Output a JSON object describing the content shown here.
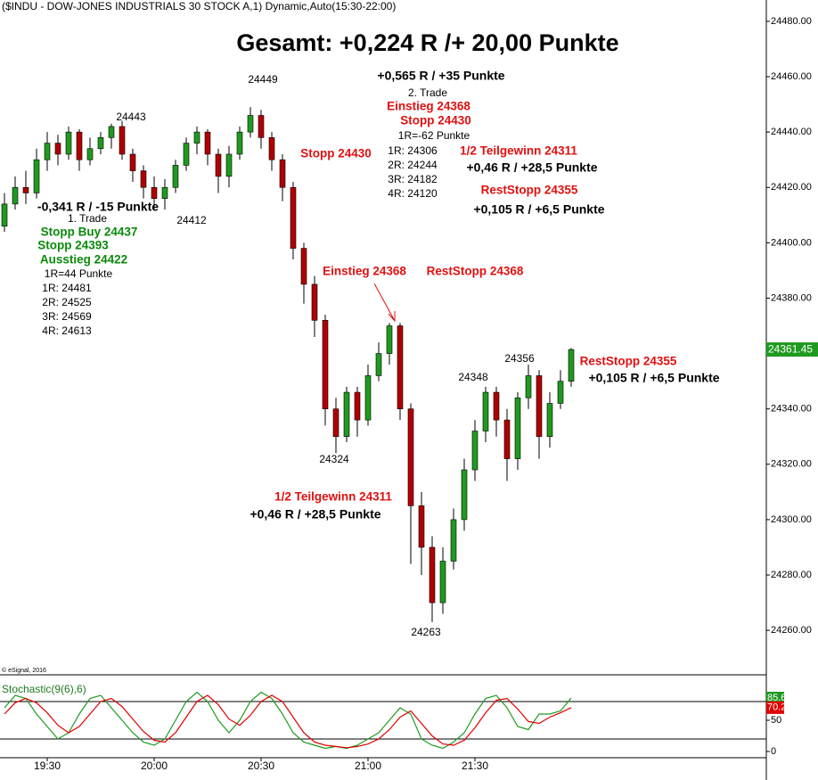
{
  "chart_data": [
    {
      "type": "candlestick",
      "title": "($INDU - DOW-JONES INDUSTRIALS 30 STOCK A,1) Dynamic,Auto(15:30-22:00)",
      "credit": "© eSignal, 2016",
      "up_color": "#1f9a1f",
      "down_color": "#b00000",
      "x": [
        1158,
        1161,
        1164,
        1167,
        1170,
        1173,
        1176,
        1179,
        1182,
        1185,
        1188,
        1191,
        1194,
        1197,
        1200,
        1203,
        1206,
        1209,
        1212,
        1215,
        1218,
        1221,
        1224,
        1227,
        1230,
        1233,
        1236,
        1239,
        1242,
        1245,
        1248,
        1251,
        1254,
        1257,
        1260,
        1263,
        1266,
        1269,
        1272,
        1275,
        1278,
        1281,
        1284,
        1287,
        1290,
        1293,
        1296,
        1299,
        1302,
        1305,
        1308,
        1311,
        1314,
        1317
      ],
      "open": [
        24406,
        24414,
        24420,
        24418,
        24430,
        24436,
        24432,
        24440,
        24430,
        24434,
        24438,
        24442,
        24432,
        24426,
        24420,
        24416,
        24420,
        24428,
        24436,
        24440,
        24432,
        24424,
        24432,
        24440,
        24446,
        24438,
        24430,
        24420,
        24398,
        24385,
        24372,
        24340,
        24330,
        24346,
        24336,
        24352,
        24360,
        24370,
        24340,
        24305,
        24290,
        24270,
        24285,
        24300,
        24318,
        24332,
        24346,
        24336,
        24322,
        24344,
        24352,
        24330,
        24342,
        24350
      ],
      "high": [
        24418,
        24424,
        24426,
        24434,
        24440,
        24439,
        24442,
        24441,
        24438,
        24440,
        24443,
        24444,
        24434,
        24428,
        24424,
        24423,
        24430,
        24438,
        24442,
        24441,
        24434,
        24435,
        24442,
        24449,
        24448,
        24440,
        24432,
        24422,
        24400,
        24388,
        24374,
        24344,
        24348,
        24348,
        24356,
        24364,
        24371,
        24371,
        24342,
        24310,
        24294,
        24290,
        24304,
        24322,
        24336,
        24348,
        24348,
        24340,
        24346,
        24356,
        24354,
        24346,
        24354,
        24362
      ],
      "low": [
        24404,
        24412,
        24414,
        24416,
        24426,
        24428,
        24430,
        24426,
        24428,
        24432,
        24434,
        24430,
        24422,
        24416,
        24412,
        24412,
        24418,
        24426,
        24432,
        24428,
        24418,
        24420,
        24430,
        24438,
        24434,
        24426,
        24415,
        24394,
        24378,
        24366,
        24334,
        24324,
        24328,
        24330,
        24334,
        24350,
        24356,
        24336,
        24284,
        24280,
        24263,
        24266,
        24282,
        24296,
        24314,
        24328,
        24330,
        24314,
        24318,
        24340,
        24322,
        24326,
        24340,
        24348
      ],
      "close": [
        24414,
        24420,
        24418,
        24430,
        24436,
        24432,
        24440,
        24430,
        24434,
        24438,
        24442,
        24432,
        24426,
        24420,
        24416,
        24420,
        24428,
        24436,
        24440,
        24432,
        24424,
        24432,
        24440,
        24446,
        24438,
        24430,
        24420,
        24398,
        24385,
        24372,
        24340,
        24330,
        24346,
        24336,
        24352,
        24360,
        24370,
        24340,
        24305,
        24290,
        24270,
        24285,
        24300,
        24318,
        24332,
        24346,
        24336,
        24322,
        24344,
        24352,
        24330,
        24342,
        24350,
        24361.45
      ],
      "xlim": [
        1156.75,
        1371.75
      ],
      "ylim": [
        24246.2,
        24487.7
      ],
      "yticks": [
        {
          "value": 24260,
          "label": "24260.00"
        },
        {
          "value": 24280,
          "label": "24280.00"
        },
        {
          "value": 24300,
          "label": "24300.00"
        },
        {
          "value": 24320,
          "label": "24320.00"
        },
        {
          "value": 24340,
          "label": "24340.00"
        },
        {
          "value": 24360,
          "label": "24360.00"
        },
        {
          "value": 24380,
          "label": "24380.00"
        },
        {
          "value": 24400,
          "label": "24400.00"
        },
        {
          "value": 24420,
          "label": "24420.00"
        },
        {
          "value": 24440,
          "label": "24440.00"
        },
        {
          "value": 24460,
          "label": "24460.00"
        },
        {
          "value": 24480,
          "label": "24480.00"
        }
      ],
      "annotations": [
        "Gesamt: +0,224 R /+ 20,00 Punkte",
        "24449",
        "+0,565 R / +35 Punkte",
        "2. Trade",
        "Einstieg 24368",
        "Stopp 24430",
        "1R=-62 Punkte",
        "1R: 24306",
        "2R: 24244",
        "3R: 24182",
        "4R: 24120",
        "1/2 Teilgewinn 24311",
        "+0,46 R / +28,5 Punkte",
        "RestStopp 24355",
        "+0,105 R / +6,5 Punkte",
        "24443",
        "Stopp 24430",
        "-0,341 R / -15 Punkte",
        "24412",
        "1. Trade",
        "Stopp Buy 24437",
        "Stopp 24393",
        "Ausstieg 24422",
        "1R=44 Punkte",
        "1R: 24481",
        "2R: 24525",
        "3R: 24569",
        "4R: 24613",
        "Einstieg 24368",
        "RestStopp 24368",
        "24356",
        "RestStopp 24355",
        "+0,105 R / +6,5 Punkte",
        "24348",
        "24324",
        "1/2 Teilgewinn 24311",
        "+0,46 R / +28,5 Punkte",
        "24263"
      ]
    },
    {
      "type": "line",
      "title": "Stochastic(9(6),6)",
      "x": [
        1158,
        1161,
        1164,
        1167,
        1170,
        1173,
        1176,
        1179,
        1182,
        1185,
        1188,
        1191,
        1194,
        1197,
        1200,
        1203,
        1206,
        1209,
        1212,
        1215,
        1218,
        1221,
        1224,
        1227,
        1230,
        1233,
        1236,
        1239,
        1242,
        1245,
        1248,
        1251,
        1254,
        1257,
        1260,
        1263,
        1266,
        1269,
        1272,
        1275,
        1278,
        1281,
        1284,
        1287,
        1290,
        1293,
        1296,
        1299,
        1302,
        1305,
        1308,
        1311,
        1314,
        1317
      ],
      "series": [
        {
          "color": "#1f9a1f",
          "values": [
            70,
            90,
            85,
            60,
            40,
            20,
            30,
            60,
            85,
            90,
            70,
            50,
            30,
            15,
            10,
            20,
            50,
            80,
            95,
            80,
            50,
            30,
            50,
            80,
            95,
            85,
            60,
            30,
            15,
            10,
            5,
            8,
            5,
            10,
            20,
            30,
            50,
            70,
            60,
            20,
            10,
            5,
            15,
            30,
            60,
            85,
            90,
            70,
            40,
            35,
            60,
            60,
            65,
            85.68
          ]
        },
        {
          "color": "#e00000",
          "values": [
            60,
            78,
            85,
            78,
            62,
            42,
            30,
            40,
            60,
            80,
            85,
            72,
            52,
            32,
            18,
            15,
            30,
            55,
            80,
            90,
            75,
            52,
            42,
            58,
            80,
            90,
            80,
            55,
            30,
            15,
            10,
            8,
            6,
            8,
            12,
            20,
            35,
            55,
            65,
            45,
            25,
            12,
            10,
            18,
            38,
            62,
            82,
            85,
            68,
            48,
            45,
            55,
            62,
            70.21
          ]
        }
      ],
      "levels": [
        20,
        80
      ],
      "xlim": [
        1156.75,
        1371.75
      ],
      "ylim": [
        -10,
        111.4
      ],
      "yticks": [
        0,
        50
      ],
      "xticks": [
        {
          "value": 1170,
          "label": "19:30"
        },
        {
          "value": 1200,
          "label": "20:00"
        },
        {
          "value": 1230,
          "label": "20:30"
        },
        {
          "value": 1260,
          "label": "21:00"
        },
        {
          "value": 1290,
          "label": "21:30"
        }
      ]
    }
  ]
}
